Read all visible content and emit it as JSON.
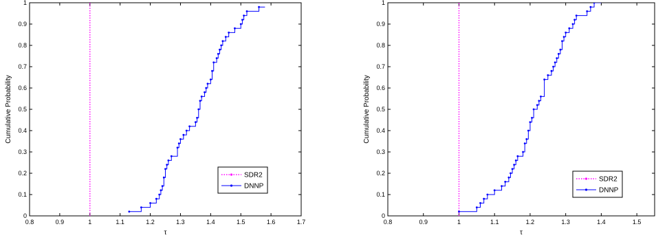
{
  "chart_data": [
    {
      "type": "line",
      "subtype": "step-ecdf",
      "title": "",
      "xlabel": "τ",
      "ylabel": "Cumulative Probability",
      "xlim": [
        0.8,
        1.7
      ],
      "ylim": [
        0,
        1
      ],
      "xticks": [
        "0.8",
        "0.9",
        "1",
        "1.1",
        "1.2",
        "1.3",
        "1.4",
        "1.5",
        "1.6",
        "1.7"
      ],
      "yticks": [
        "0",
        "0.1",
        "0.2",
        "0.3",
        "0.4",
        "0.5",
        "0.6",
        "0.7",
        "0.8",
        "0.9",
        "1"
      ],
      "legend_position": "bottom-right",
      "grid": false,
      "series": [
        {
          "name": "SDR2",
          "color": "#ff00ff",
          "style": "dotted",
          "marker": "dot",
          "x": [
            1.0,
            1.0
          ],
          "y": [
            0,
            1
          ]
        },
        {
          "name": "DNNP",
          "color": "#0000ff",
          "style": "solid",
          "marker": "dot",
          "x": [
            1.13,
            1.17,
            1.2,
            1.22,
            1.23,
            1.235,
            1.24,
            1.245,
            1.25,
            1.255,
            1.26,
            1.27,
            1.29,
            1.295,
            1.3,
            1.31,
            1.32,
            1.33,
            1.35,
            1.355,
            1.36,
            1.365,
            1.37,
            1.38,
            1.385,
            1.39,
            1.4,
            1.405,
            1.41,
            1.42,
            1.425,
            1.43,
            1.435,
            1.44,
            1.45,
            1.46,
            1.48,
            1.5,
            1.505,
            1.51,
            1.52,
            1.56
          ],
          "y": [
            0.02,
            0.04,
            0.06,
            0.08,
            0.1,
            0.12,
            0.14,
            0.18,
            0.22,
            0.24,
            0.26,
            0.28,
            0.32,
            0.34,
            0.36,
            0.38,
            0.4,
            0.42,
            0.44,
            0.46,
            0.5,
            0.54,
            0.56,
            0.58,
            0.6,
            0.62,
            0.64,
            0.68,
            0.72,
            0.74,
            0.76,
            0.78,
            0.8,
            0.82,
            0.84,
            0.86,
            0.88,
            0.9,
            0.92,
            0.94,
            0.96,
            0.98
          ]
        }
      ]
    },
    {
      "type": "line",
      "subtype": "step-ecdf",
      "title": "",
      "xlabel": "τ",
      "ylabel": "Cumulative Probability",
      "xlim": [
        0.8,
        1.55
      ],
      "ylim": [
        0,
        1
      ],
      "xticks": [
        "0.8",
        "0.9",
        "1",
        "1.1",
        "1.2",
        "1.3",
        "1.4",
        "1.5"
      ],
      "yticks": [
        "0",
        "0.1",
        "0.2",
        "0.3",
        "0.4",
        "0.5",
        "0.6",
        "0.7",
        "0.8",
        "0.9",
        "1"
      ],
      "legend_position": "bottom-right",
      "grid": false,
      "series": [
        {
          "name": "SDR2",
          "color": "#ff00ff",
          "style": "dotted",
          "marker": "dot",
          "x": [
            1.0,
            1.0
          ],
          "y": [
            0,
            1
          ]
        },
        {
          "name": "DNNP",
          "color": "#0000ff",
          "style": "solid",
          "marker": "dot",
          "x": [
            1.0,
            1.05,
            1.06,
            1.07,
            1.08,
            1.1,
            1.12,
            1.13,
            1.14,
            1.145,
            1.15,
            1.155,
            1.16,
            1.165,
            1.18,
            1.185,
            1.19,
            1.195,
            1.2,
            1.205,
            1.21,
            1.22,
            1.225,
            1.23,
            1.24,
            1.25,
            1.26,
            1.265,
            1.27,
            1.275,
            1.28,
            1.285,
            1.29,
            1.295,
            1.3,
            1.31,
            1.32,
            1.325,
            1.33,
            1.36,
            1.37,
            1.38
          ],
          "y": [
            0.02,
            0.04,
            0.06,
            0.08,
            0.1,
            0.12,
            0.14,
            0.16,
            0.18,
            0.2,
            0.22,
            0.24,
            0.26,
            0.28,
            0.3,
            0.34,
            0.36,
            0.4,
            0.44,
            0.46,
            0.5,
            0.52,
            0.54,
            0.56,
            0.64,
            0.66,
            0.68,
            0.7,
            0.72,
            0.74,
            0.76,
            0.78,
            0.82,
            0.84,
            0.86,
            0.88,
            0.9,
            0.92,
            0.94,
            0.96,
            0.98,
            1.0
          ]
        }
      ]
    }
  ]
}
